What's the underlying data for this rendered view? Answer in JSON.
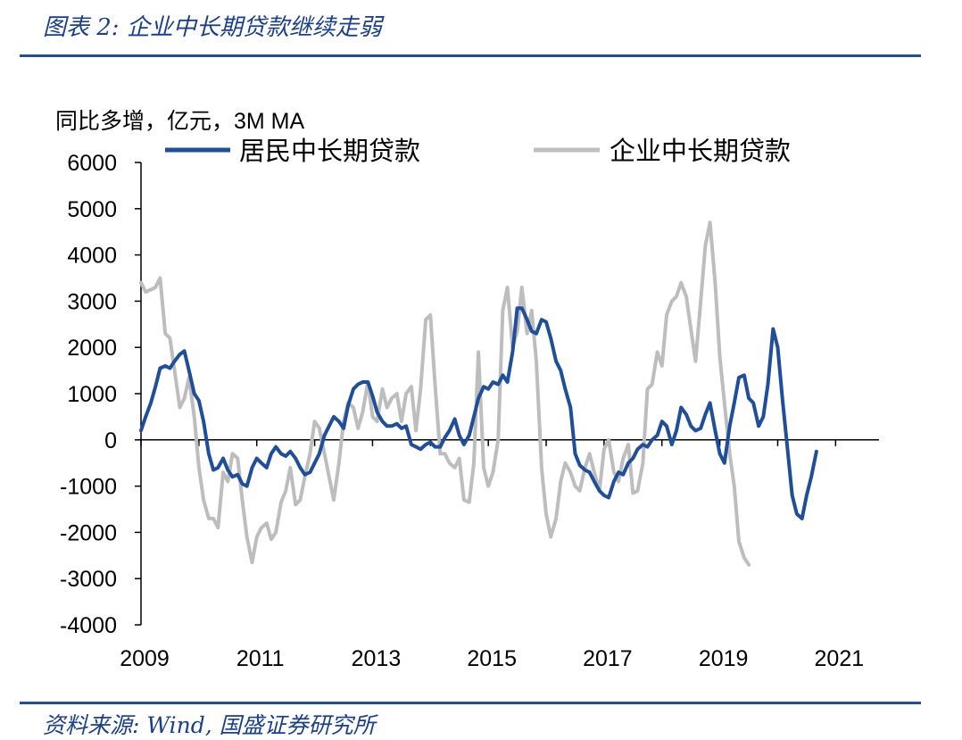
{
  "header": {
    "title": "图表 2:  企业中长期贷款继续走弱"
  },
  "footer": {
    "source": "资料来源:  Wind, 国盛证券研究所"
  },
  "chart_data": {
    "type": "line",
    "unit_label": "同比多增，亿元，3M MA",
    "ylim": [
      -4000,
      6000
    ],
    "yticks": [
      6000,
      5000,
      4000,
      3000,
      2000,
      1000,
      0,
      -1000,
      -2000,
      -3000,
      -4000
    ],
    "xticks": [
      "2009",
      "2011",
      "2013",
      "2015",
      "2017",
      "2019",
      "2021"
    ],
    "xlim": [
      2009.0,
      2021.75
    ],
    "legend_position": "top",
    "series": [
      {
        "name": "居民中长期贷款",
        "color": "#1f4e9a",
        "points": [
          [
            2009.0,
            200
          ],
          [
            2009.08,
            500
          ],
          [
            2009.17,
            800
          ],
          [
            2009.25,
            1150
          ],
          [
            2009.33,
            1550
          ],
          [
            2009.42,
            1600
          ],
          [
            2009.5,
            1550
          ],
          [
            2009.58,
            1700
          ],
          [
            2009.67,
            1850
          ],
          [
            2009.75,
            1920
          ],
          [
            2009.83,
            1500
          ],
          [
            2009.92,
            1000
          ],
          [
            2010.0,
            850
          ],
          [
            2010.08,
            400
          ],
          [
            2010.17,
            -300
          ],
          [
            2010.25,
            -650
          ],
          [
            2010.33,
            -600
          ],
          [
            2010.42,
            -400
          ],
          [
            2010.5,
            -650
          ],
          [
            2010.58,
            -800
          ],
          [
            2010.67,
            -750
          ],
          [
            2010.75,
            -950
          ],
          [
            2010.83,
            -1000
          ],
          [
            2010.92,
            -600
          ],
          [
            2011.0,
            -400
          ],
          [
            2011.08,
            -500
          ],
          [
            2011.17,
            -600
          ],
          [
            2011.25,
            -300
          ],
          [
            2011.33,
            -150
          ],
          [
            2011.42,
            -300
          ],
          [
            2011.5,
            -350
          ],
          [
            2011.58,
            -250
          ],
          [
            2011.67,
            -400
          ],
          [
            2011.75,
            -600
          ],
          [
            2011.83,
            -750
          ],
          [
            2011.92,
            -700
          ],
          [
            2012.0,
            -500
          ],
          [
            2012.08,
            -300
          ],
          [
            2012.17,
            100
          ],
          [
            2012.25,
            300
          ],
          [
            2012.33,
            500
          ],
          [
            2012.42,
            400
          ],
          [
            2012.5,
            250
          ],
          [
            2012.58,
            750
          ],
          [
            2012.67,
            1100
          ],
          [
            2012.75,
            1200
          ],
          [
            2012.83,
            1250
          ],
          [
            2012.92,
            1250
          ],
          [
            2013.0,
            950
          ],
          [
            2013.08,
            600
          ],
          [
            2013.17,
            400
          ],
          [
            2013.25,
            300
          ],
          [
            2013.33,
            300
          ],
          [
            2013.42,
            350
          ],
          [
            2013.5,
            250
          ],
          [
            2013.58,
            300
          ],
          [
            2013.67,
            -100
          ],
          [
            2013.75,
            -150
          ],
          [
            2013.83,
            -200
          ],
          [
            2013.92,
            -100
          ],
          [
            2014.0,
            -50
          ],
          [
            2014.08,
            -150
          ],
          [
            2014.17,
            -150
          ],
          [
            2014.25,
            50
          ],
          [
            2014.33,
            200
          ],
          [
            2014.42,
            450
          ],
          [
            2014.5,
            100
          ],
          [
            2014.58,
            -100
          ],
          [
            2014.67,
            100
          ],
          [
            2014.75,
            500
          ],
          [
            2014.83,
            900
          ],
          [
            2014.92,
            1150
          ],
          [
            2015.0,
            1100
          ],
          [
            2015.08,
            1250
          ],
          [
            2015.17,
            1200
          ],
          [
            2015.25,
            1400
          ],
          [
            2015.33,
            1250
          ],
          [
            2015.42,
            1900
          ],
          [
            2015.5,
            2850
          ],
          [
            2015.58,
            2850
          ],
          [
            2015.67,
            2600
          ],
          [
            2015.75,
            2350
          ],
          [
            2015.83,
            2300
          ],
          [
            2015.92,
            2600
          ],
          [
            2016.0,
            2550
          ],
          [
            2016.08,
            2200
          ],
          [
            2016.17,
            1700
          ],
          [
            2016.25,
            1500
          ],
          [
            2016.33,
            1100
          ],
          [
            2016.42,
            700
          ],
          [
            2016.5,
            -300
          ],
          [
            2016.58,
            -550
          ],
          [
            2016.67,
            -650
          ],
          [
            2016.75,
            -700
          ],
          [
            2016.83,
            -900
          ],
          [
            2016.92,
            -1100
          ],
          [
            2017.0,
            -1200
          ],
          [
            2017.08,
            -1250
          ],
          [
            2017.17,
            -900
          ],
          [
            2017.25,
            -700
          ],
          [
            2017.33,
            -750
          ],
          [
            2017.42,
            -500
          ],
          [
            2017.5,
            -400
          ],
          [
            2017.58,
            -200
          ],
          [
            2017.67,
            -100
          ],
          [
            2017.75,
            -150
          ],
          [
            2017.83,
            0
          ],
          [
            2017.92,
            100
          ],
          [
            2018.0,
            400
          ],
          [
            2018.08,
            300
          ],
          [
            2018.17,
            -100
          ],
          [
            2018.25,
            200
          ],
          [
            2018.33,
            700
          ],
          [
            2018.42,
            550
          ],
          [
            2018.5,
            300
          ],
          [
            2018.58,
            200
          ],
          [
            2018.67,
            250
          ],
          [
            2018.75,
            550
          ],
          [
            2018.83,
            800
          ],
          [
            2018.92,
            200
          ],
          [
            2019.0,
            -300
          ],
          [
            2019.08,
            -500
          ],
          [
            2019.17,
            300
          ],
          [
            2019.25,
            800
          ],
          [
            2019.33,
            1350
          ],
          [
            2019.42,
            1400
          ],
          [
            2019.5,
            900
          ],
          [
            2019.58,
            800
          ],
          [
            2019.67,
            300
          ],
          [
            2019.75,
            500
          ],
          [
            2019.83,
            1200
          ],
          [
            2019.92,
            2400
          ],
          [
            2020.0,
            2000
          ],
          [
            2020.08,
            900
          ],
          [
            2020.17,
            -200
          ],
          [
            2020.25,
            -1200
          ],
          [
            2020.33,
            -1600
          ],
          [
            2020.42,
            -1700
          ],
          [
            2020.5,
            -1200
          ],
          [
            2020.58,
            -800
          ],
          [
            2020.67,
            -250
          ]
        ]
      },
      {
        "name": "企业中长期贷款",
        "color": "#bdbdbd",
        "points": [
          [
            2009.0,
            3400
          ],
          [
            2009.08,
            3200
          ],
          [
            2009.17,
            3250
          ],
          [
            2009.25,
            3300
          ],
          [
            2009.33,
            3500
          ],
          [
            2009.42,
            2300
          ],
          [
            2009.5,
            2200
          ],
          [
            2009.58,
            1500
          ],
          [
            2009.67,
            700
          ],
          [
            2009.75,
            900
          ],
          [
            2009.83,
            1350
          ],
          [
            2009.92,
            500
          ],
          [
            2010.0,
            -600
          ],
          [
            2010.08,
            -1300
          ],
          [
            2010.17,
            -1700
          ],
          [
            2010.25,
            -1700
          ],
          [
            2010.33,
            -1900
          ],
          [
            2010.42,
            -700
          ],
          [
            2010.5,
            -900
          ],
          [
            2010.58,
            -300
          ],
          [
            2010.67,
            -400
          ],
          [
            2010.75,
            -1300
          ],
          [
            2010.83,
            -2100
          ],
          [
            2010.92,
            -2650
          ],
          [
            2011.0,
            -2100
          ],
          [
            2011.08,
            -1900
          ],
          [
            2011.17,
            -1800
          ],
          [
            2011.25,
            -2150
          ],
          [
            2011.33,
            -2000
          ],
          [
            2011.42,
            -1350
          ],
          [
            2011.5,
            -1100
          ],
          [
            2011.58,
            -600
          ],
          [
            2011.67,
            -1400
          ],
          [
            2011.75,
            -1300
          ],
          [
            2011.83,
            -800
          ],
          [
            2011.92,
            -300
          ],
          [
            2012.0,
            400
          ],
          [
            2012.08,
            250
          ],
          [
            2012.17,
            -300
          ],
          [
            2012.25,
            -800
          ],
          [
            2012.33,
            -1300
          ],
          [
            2012.42,
            -500
          ],
          [
            2012.5,
            400
          ],
          [
            2012.58,
            800
          ],
          [
            2012.67,
            700
          ],
          [
            2012.75,
            250
          ],
          [
            2012.83,
            600
          ],
          [
            2012.92,
            1250
          ],
          [
            2013.0,
            500
          ],
          [
            2013.08,
            400
          ],
          [
            2013.17,
            1100
          ],
          [
            2013.25,
            700
          ],
          [
            2013.33,
            900
          ],
          [
            2013.42,
            1000
          ],
          [
            2013.5,
            400
          ],
          [
            2013.58,
            1000
          ],
          [
            2013.67,
            1150
          ],
          [
            2013.75,
            200
          ],
          [
            2013.83,
            1100
          ],
          [
            2013.92,
            2600
          ],
          [
            2014.0,
            2700
          ],
          [
            2014.08,
            1200
          ],
          [
            2014.17,
            -300
          ],
          [
            2014.25,
            -300
          ],
          [
            2014.33,
            -500
          ],
          [
            2014.42,
            -600
          ],
          [
            2014.5,
            -400
          ],
          [
            2014.58,
            -1300
          ],
          [
            2014.67,
            -1350
          ],
          [
            2014.75,
            -500
          ],
          [
            2014.83,
            1900
          ],
          [
            2014.92,
            -600
          ],
          [
            2015.0,
            -1000
          ],
          [
            2015.08,
            -700
          ],
          [
            2015.17,
            0
          ],
          [
            2015.25,
            2800
          ],
          [
            2015.33,
            3300
          ],
          [
            2015.42,
            2000
          ],
          [
            2015.5,
            2350
          ],
          [
            2015.58,
            3300
          ],
          [
            2015.67,
            2300
          ],
          [
            2015.75,
            2800
          ],
          [
            2015.83,
            1700
          ],
          [
            2015.92,
            -600
          ],
          [
            2016.0,
            -1600
          ],
          [
            2016.08,
            -2100
          ],
          [
            2016.17,
            -1700
          ],
          [
            2016.25,
            -900
          ],
          [
            2016.33,
            -500
          ],
          [
            2016.42,
            -700
          ],
          [
            2016.5,
            -1000
          ],
          [
            2016.58,
            -1100
          ],
          [
            2016.67,
            -600
          ],
          [
            2016.75,
            -300
          ],
          [
            2016.83,
            -700
          ],
          [
            2016.92,
            -1100
          ],
          [
            2017.0,
            -200
          ],
          [
            2017.08,
            0
          ],
          [
            2017.17,
            -700
          ],
          [
            2017.25,
            -900
          ],
          [
            2017.33,
            -400
          ],
          [
            2017.42,
            -100
          ],
          [
            2017.5,
            -1150
          ],
          [
            2017.58,
            -1100
          ],
          [
            2017.67,
            -500
          ],
          [
            2017.75,
            1100
          ],
          [
            2017.83,
            1200
          ],
          [
            2017.92,
            1900
          ],
          [
            2018.0,
            1600
          ],
          [
            2018.08,
            2700
          ],
          [
            2018.17,
            3000
          ],
          [
            2018.25,
            3100
          ],
          [
            2018.33,
            3400
          ],
          [
            2018.42,
            3100
          ],
          [
            2018.5,
            2400
          ],
          [
            2018.58,
            1700
          ],
          [
            2018.67,
            3000
          ],
          [
            2018.75,
            4200
          ],
          [
            2018.83,
            4700
          ],
          [
            2018.92,
            3400
          ],
          [
            2019.0,
            1800
          ],
          [
            2019.08,
            800
          ],
          [
            2019.17,
            -300
          ],
          [
            2019.25,
            -1000
          ],
          [
            2019.33,
            -2200
          ],
          [
            2019.42,
            -2550
          ],
          [
            2019.5,
            -2700
          ]
        ]
      }
    ]
  }
}
